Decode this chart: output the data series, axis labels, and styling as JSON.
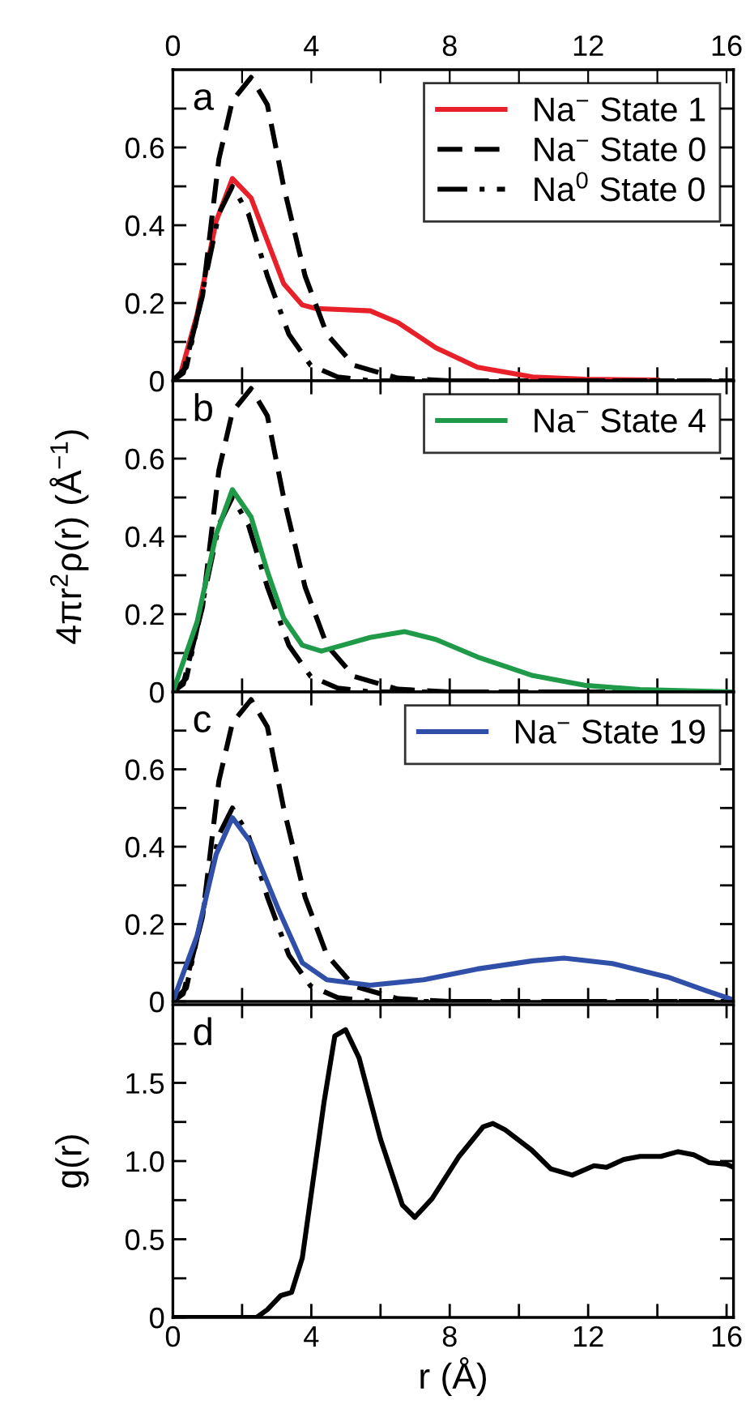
{
  "chart_data": [
    {
      "type": "line",
      "annotations": [
        "a"
      ],
      "xlim": [
        0,
        16.2
      ],
      "ylim": [
        0,
        0.8
      ],
      "x2lim": [
        0,
        16.2
      ],
      "x2ticks": [
        0,
        {
          "value": 2,
          "label": null
        },
        4,
        {
          "value": 6,
          "label": null
        },
        8,
        {
          "value": 10,
          "label": null
        },
        12,
        {
          "value": 14,
          "label": null
        },
        16
      ],
      "xticks": [
        {
          "value": 0,
          "label": null
        },
        {
          "value": 2,
          "label": null
        },
        {
          "value": 4,
          "label": null
        },
        {
          "value": 6,
          "label": null
        },
        {
          "value": 8,
          "label": null
        },
        {
          "value": 10,
          "label": null
        },
        {
          "value": 12,
          "label": null
        },
        {
          "value": 14,
          "label": null
        },
        {
          "value": 16,
          "label": null
        }
      ],
      "yticks": [
        0,
        {
          "value": 0.1,
          "label": null
        },
        0.2,
        {
          "value": 0.3,
          "label": null
        },
        0.4,
        {
          "value": 0.5,
          "label": null
        },
        0.6,
        {
          "value": 0.7,
          "label": null
        }
      ],
      "tick_labels": "y",
      "legend": "top right",
      "grid": false,
      "series": [
        {
          "name": "Na$^{−}$ State 1",
          "color": "#e8202a",
          "line_style": "solid",
          "x": [
            0,
            0.23,
            0.7,
            1.25,
            1.72,
            2.26,
            3.2,
            3.74,
            4.13,
            5.7,
            6.5,
            7.6,
            8.8,
            10.4,
            11.9,
            14.0
          ],
          "values": [
            0,
            0.02,
            0.17,
            0.41,
            0.52,
            0.47,
            0.25,
            0.195,
            0.186,
            0.18,
            0.15,
            0.085,
            0.035,
            0.01,
            0.004,
            0.002
          ]
        },
        {
          "name": "Na$^{−}$ State 0",
          "color": "#000000",
          "line_style": "dashed",
          "x": [
            0,
            0.3,
            0.86,
            1.33,
            1.72,
            2.26,
            2.73,
            3.2,
            3.82,
            4.45,
            5.23,
            6.5,
            8.0,
            16.2
          ],
          "values": [
            0,
            0.02,
            0.22,
            0.57,
            0.72,
            0.78,
            0.71,
            0.5,
            0.27,
            0.12,
            0.04,
            0.007,
            0,
            0
          ]
        },
        {
          "name": "Na$^{0}$ State 0",
          "color": "#000000",
          "line_style": "dashdot",
          "x": [
            0,
            0.39,
            0.86,
            1.33,
            1.72,
            2.18,
            2.73,
            3.35,
            3.98,
            4.76,
            5.7,
            16.2
          ],
          "values": [
            0,
            0.035,
            0.23,
            0.43,
            0.5,
            0.43,
            0.27,
            0.12,
            0.04,
            0.01,
            0,
            0
          ]
        }
      ]
    },
    {
      "type": "line",
      "annotations": [
        "b"
      ],
      "xlim": [
        0,
        16.2
      ],
      "ylim": [
        0,
        0.8
      ],
      "ylabel": "4πr$^{2}$ρ(r) (Å$^{−1}$)",
      "xticks": [
        {
          "value": 0,
          "label": null
        },
        {
          "value": 2,
          "label": null
        },
        {
          "value": 4,
          "label": null
        },
        {
          "value": 6,
          "label": null
        },
        {
          "value": 8,
          "label": null
        },
        {
          "value": 10,
          "label": null
        },
        {
          "value": 12,
          "label": null
        },
        {
          "value": 14,
          "label": null
        },
        {
          "value": 16,
          "label": null
        }
      ],
      "yticks": [
        0,
        {
          "value": 0.1,
          "label": null
        },
        0.2,
        {
          "value": 0.3,
          "label": null
        },
        0.4,
        {
          "value": 0.5,
          "label": null
        },
        0.6,
        {
          "value": 0.7,
          "label": null
        }
      ],
      "tick_labels": "y",
      "legend": "top right",
      "grid": false,
      "series": [
        {
          "color": "#000000",
          "line_style": "dashed",
          "x": [
            0,
            0.3,
            0.86,
            1.33,
            1.72,
            2.26,
            2.73,
            3.2,
            3.82,
            4.45,
            5.23,
            6.5,
            8.0,
            16.2
          ],
          "values": [
            0,
            0.02,
            0.22,
            0.57,
            0.72,
            0.78,
            0.71,
            0.5,
            0.27,
            0.12,
            0.04,
            0.007,
            0,
            0
          ]
        },
        {
          "color": "#000000",
          "line_style": "dashdot",
          "x": [
            0,
            0.39,
            0.86,
            1.33,
            1.72,
            2.18,
            2.73,
            3.35,
            3.98,
            4.76,
            5.7,
            16.2
          ],
          "values": [
            0,
            0.035,
            0.23,
            0.43,
            0.5,
            0.43,
            0.27,
            0.12,
            0.04,
            0.01,
            0,
            0
          ]
        },
        {
          "name": "Na$^{−}$ State 4",
          "color": "#1f9a48",
          "line_style": "solid",
          "x": [
            0,
            0.7,
            1.25,
            1.72,
            2.26,
            2.73,
            3.2,
            3.74,
            4.29,
            4.9,
            5.7,
            6.7,
            7.6,
            8.8,
            10.4,
            11.9,
            13.5,
            16.2
          ],
          "values": [
            0,
            0.18,
            0.405,
            0.52,
            0.45,
            0.31,
            0.19,
            0.12,
            0.105,
            0.12,
            0.14,
            0.155,
            0.135,
            0.09,
            0.042,
            0.017,
            0.006,
            0
          ]
        }
      ]
    },
    {
      "type": "line",
      "annotations": [
        "c"
      ],
      "xlim": [
        0,
        16.2
      ],
      "ylim": [
        0,
        0.8
      ],
      "xticks": [
        {
          "value": 0,
          "label": null
        },
        {
          "value": 2,
          "label": null
        },
        {
          "value": 4,
          "label": null
        },
        {
          "value": 6,
          "label": null
        },
        {
          "value": 8,
          "label": null
        },
        {
          "value": 10,
          "label": null
        },
        {
          "value": 12,
          "label": null
        },
        {
          "value": 14,
          "label": null
        },
        {
          "value": 16,
          "label": null
        }
      ],
      "yticks": [
        0,
        {
          "value": 0.1,
          "label": null
        },
        0.2,
        {
          "value": 0.3,
          "label": null
        },
        0.4,
        {
          "value": 0.5,
          "label": null
        },
        0.6,
        {
          "value": 0.7,
          "label": null
        }
      ],
      "tick_labels": "y",
      "legend": "top right",
      "grid": false,
      "series": [
        {
          "color": "#000000",
          "line_style": "dashed",
          "x": [
            0,
            0.3,
            0.86,
            1.33,
            1.72,
            2.26,
            2.73,
            3.2,
            3.82,
            4.45,
            5.23,
            6.5,
            8.0,
            16.2
          ],
          "values": [
            0,
            0.02,
            0.22,
            0.57,
            0.72,
            0.78,
            0.71,
            0.5,
            0.27,
            0.12,
            0.04,
            0.007,
            0,
            0
          ]
        },
        {
          "color": "#000000",
          "line_style": "dashdot",
          "x": [
            0,
            0.39,
            0.86,
            1.33,
            1.72,
            2.18,
            2.73,
            3.35,
            3.98,
            4.76,
            5.7,
            16.2
          ],
          "values": [
            0,
            0.035,
            0.23,
            0.43,
            0.5,
            0.43,
            0.27,
            0.12,
            0.04,
            0.01,
            0,
            0
          ]
        },
        {
          "name": "Na$^{−}$ State 19",
          "color": "#2f4fa8",
          "line_style": "solid",
          "x": [
            0,
            0.7,
            1.25,
            1.72,
            2.26,
            3.04,
            3.74,
            4.45,
            5.7,
            7.25,
            8.8,
            10.4,
            11.3,
            12.7,
            14.3,
            15.4,
            16.2
          ],
          "values": [
            0,
            0.17,
            0.38,
            0.475,
            0.41,
            0.24,
            0.1,
            0.056,
            0.042,
            0.056,
            0.084,
            0.105,
            0.112,
            0.098,
            0.063,
            0.028,
            0.004
          ]
        }
      ]
    },
    {
      "type": "line",
      "annotations": [
        "d"
      ],
      "xlim": [
        0,
        16.2
      ],
      "ylim": [
        0,
        2.0
      ],
      "ylabel": "g(r)",
      "xlabel": "r (Å)",
      "xticks": [
        0,
        {
          "value": 2,
          "label": null
        },
        4,
        {
          "value": 6,
          "label": null
        },
        8,
        {
          "value": 10,
          "label": null
        },
        12,
        {
          "value": 14,
          "label": null
        },
        16
      ],
      "yticks": [
        0,
        {
          "value": 0.25,
          "label": null
        },
        0.5,
        {
          "value": 0.75,
          "label": null
        },
        {
          "value": 1,
          "label": "1.0"
        },
        {
          "value": 1.25,
          "label": null
        },
        1.5,
        {
          "value": 1.75,
          "label": null
        }
      ],
      "grid": false,
      "series": [
        {
          "color": "#000000",
          "line_style": "solid",
          "x": [
            0,
            2.42,
            2.73,
            3.12,
            3.43,
            3.74,
            4.37,
            4.68,
            4.99,
            5.38,
            6.0,
            6.63,
            6.99,
            7.49,
            8.27,
            8.97,
            9.25,
            9.6,
            10.37,
            10.92,
            11.54,
            12.17,
            12.53,
            13.03,
            13.5,
            14.1,
            14.6,
            15.05,
            15.5,
            16.0,
            16.2
          ],
          "values": [
            0,
            0,
            0.05,
            0.14,
            0.16,
            0.38,
            1.38,
            1.8,
            1.84,
            1.66,
            1.14,
            0.72,
            0.64,
            0.76,
            1.03,
            1.22,
            1.24,
            1.2,
            1.07,
            0.95,
            0.91,
            0.97,
            0.96,
            1.01,
            1.03,
            1.03,
            1.06,
            1.04,
            0.99,
            0.98,
            0.96
          ]
        }
      ]
    }
  ]
}
